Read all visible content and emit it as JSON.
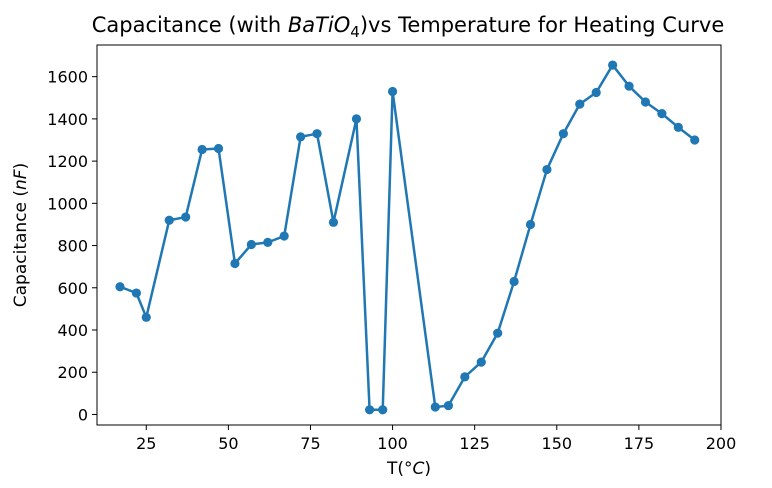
{
  "chart_data": {
    "type": "line",
    "title": {
      "prefix": "Capacitance (with ",
      "formula_parts": [
        {
          "text": "BaTiO",
          "italic": true,
          "sub": false
        },
        {
          "text": "4",
          "italic": false,
          "sub": true
        }
      ],
      "suffix": ")vs Temperature for Heating Curve"
    },
    "xlabel": {
      "prefix": "T(",
      "symbol": "°C",
      "suffix": ")"
    },
    "ylabel": {
      "prefix": "Capacitance (",
      "symbol": "nF",
      "suffix": ")"
    },
    "xlim": [
      10,
      200
    ],
    "ylim": [
      -50,
      1750
    ],
    "xticks": [
      25,
      50,
      75,
      100,
      125,
      150,
      175,
      200
    ],
    "yticks": [
      0,
      200,
      400,
      600,
      800,
      1000,
      1200,
      1400,
      1600
    ],
    "grid": false,
    "color": "#1f77b4",
    "series": [
      {
        "x": [
          17,
          22,
          25,
          32,
          37,
          42,
          47,
          52,
          57,
          62,
          67,
          72,
          77,
          82,
          89,
          93,
          97,
          100,
          113,
          117,
          122,
          127,
          132,
          137,
          142,
          147,
          152,
          157,
          162,
          167,
          172,
          177,
          182,
          187,
          192
        ],
        "y": [
          605,
          575,
          460,
          920,
          935,
          1255,
          1260,
          715,
          805,
          815,
          845,
          1315,
          1330,
          910,
          1400,
          22,
          22,
          1530,
          35,
          42,
          178,
          248,
          385,
          630,
          900,
          1160,
          1330,
          1470,
          1525,
          1655,
          1555,
          1480,
          1425,
          1360,
          1300
        ]
      }
    ]
  }
}
